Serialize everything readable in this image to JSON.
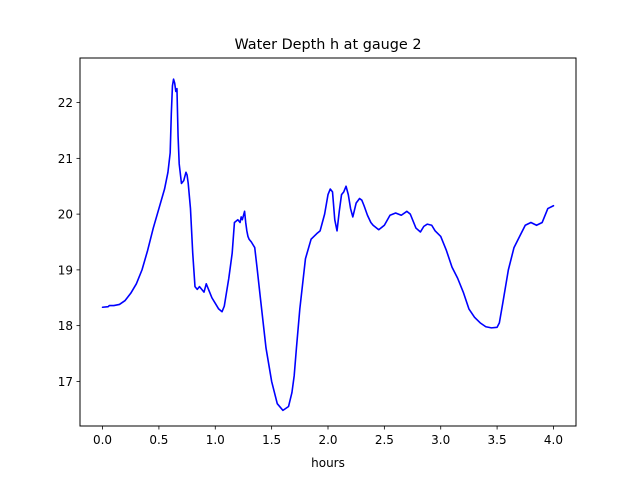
{
  "chart_data": {
    "type": "line",
    "title": "Water Depth h at gauge 2",
    "xlabel": "hours",
    "ylabel": "",
    "xlim": [
      -0.2,
      4.2
    ],
    "ylim": [
      16.2,
      22.8
    ],
    "xticks": [
      0.0,
      0.5,
      1.0,
      1.5,
      2.0,
      2.5,
      3.0,
      3.5,
      4.0
    ],
    "xtick_labels": [
      "0.0",
      "0.5",
      "1.0",
      "1.5",
      "2.0",
      "2.5",
      "3.0",
      "3.5",
      "4.0"
    ],
    "yticks": [
      17,
      18,
      19,
      20,
      21,
      22
    ],
    "ytick_labels": [
      "17",
      "18",
      "19",
      "20",
      "21",
      "22"
    ],
    "grid": false,
    "series": [
      {
        "color": "#0000ff",
        "x": [
          0.0,
          0.05,
          0.06,
          0.1,
          0.15,
          0.2,
          0.25,
          0.3,
          0.35,
          0.4,
          0.45,
          0.5,
          0.55,
          0.58,
          0.6,
          0.61,
          0.62,
          0.63,
          0.64,
          0.65,
          0.66,
          0.67,
          0.68,
          0.7,
          0.72,
          0.74,
          0.75,
          0.76,
          0.78,
          0.8,
          0.82,
          0.84,
          0.86,
          0.9,
          0.92,
          0.95,
          0.97,
          1.0,
          1.03,
          1.06,
          1.08,
          1.1,
          1.12,
          1.15,
          1.17,
          1.2,
          1.22,
          1.23,
          1.24,
          1.26,
          1.27,
          1.28,
          1.29,
          1.3,
          1.32,
          1.35,
          1.37,
          1.4,
          1.45,
          1.5,
          1.55,
          1.6,
          1.65,
          1.68,
          1.7,
          1.72,
          1.75,
          1.8,
          1.85,
          1.9,
          1.93,
          1.95,
          1.97,
          2.0,
          2.02,
          2.04,
          2.06,
          2.08,
          2.1,
          2.12,
          2.14,
          2.16,
          2.18,
          2.2,
          2.22,
          2.25,
          2.28,
          2.3,
          2.32,
          2.35,
          2.38,
          2.4,
          2.45,
          2.5,
          2.55,
          2.6,
          2.65,
          2.7,
          2.73,
          2.78,
          2.82,
          2.85,
          2.88,
          2.92,
          2.95,
          3.0,
          3.05,
          3.1,
          3.15,
          3.2,
          3.25,
          3.3,
          3.35,
          3.4,
          3.45,
          3.5,
          3.52,
          3.55,
          3.6,
          3.65,
          3.7,
          3.75,
          3.8,
          3.85,
          3.9,
          3.95,
          4.0
        ],
        "y": [
          18.33,
          18.34,
          18.36,
          18.36,
          18.38,
          18.45,
          18.58,
          18.75,
          19.0,
          19.35,
          19.75,
          20.1,
          20.45,
          20.75,
          21.1,
          21.8,
          22.3,
          22.42,
          22.35,
          22.2,
          22.25,
          21.4,
          20.9,
          20.55,
          20.6,
          20.75,
          20.7,
          20.55,
          20.1,
          19.3,
          18.7,
          18.65,
          18.7,
          18.6,
          18.75,
          18.6,
          18.5,
          18.4,
          18.3,
          18.25,
          18.35,
          18.6,
          18.85,
          19.3,
          19.85,
          19.9,
          19.85,
          19.95,
          19.9,
          20.05,
          19.85,
          19.7,
          19.6,
          19.55,
          19.5,
          19.4,
          19.05,
          18.5,
          17.6,
          17.0,
          16.6,
          16.48,
          16.55,
          16.8,
          17.1,
          17.6,
          18.3,
          19.2,
          19.55,
          19.65,
          19.7,
          19.85,
          20.0,
          20.35,
          20.45,
          20.4,
          19.9,
          19.7,
          20.05,
          20.35,
          20.4,
          20.5,
          20.35,
          20.1,
          19.95,
          20.2,
          20.28,
          20.25,
          20.15,
          19.98,
          19.85,
          19.8,
          19.72,
          19.8,
          19.98,
          20.02,
          19.98,
          20.05,
          20.0,
          19.75,
          19.68,
          19.78,
          19.82,
          19.8,
          19.7,
          19.6,
          19.35,
          19.05,
          18.85,
          18.6,
          18.3,
          18.15,
          18.05,
          17.98,
          17.96,
          17.97,
          18.05,
          18.4,
          19.0,
          19.4,
          19.6,
          19.8,
          19.85,
          19.8,
          19.85,
          20.1,
          20.15
        ]
      }
    ]
  }
}
